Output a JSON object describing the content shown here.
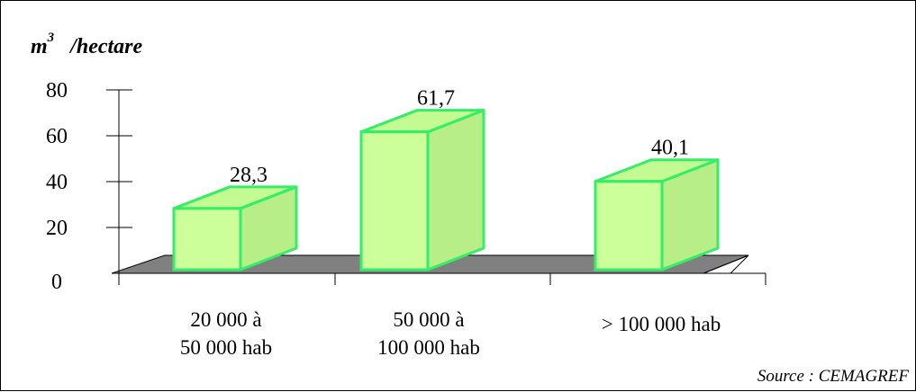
{
  "chart_data": {
    "type": "bar",
    "style": "3d",
    "unit_label": {
      "base": "m",
      "superscript": "3",
      "rest": "/hectare"
    },
    "categories": [
      [
        "20 000 à",
        "50 000 hab"
      ],
      [
        "50 000 à",
        "100 000 hab"
      ],
      [
        "> 100 000 hab"
      ]
    ],
    "values": [
      28.3,
      61.7,
      40.1
    ],
    "value_labels": [
      "28,3",
      "61,7",
      "40,1"
    ],
    "yticks": [
      "0",
      "20",
      "40",
      "60",
      "80"
    ],
    "ylim": [
      0,
      80
    ],
    "grid": false,
    "legend": "none",
    "source": "Source : CEMAGREF",
    "colors": {
      "bar_front": "#ccff99",
      "bar_side": "#b7ee88",
      "bar_top": "#c4fa92",
      "bar_edge": "#33ee66",
      "floor": "#808080",
      "axis": "#000000"
    }
  }
}
